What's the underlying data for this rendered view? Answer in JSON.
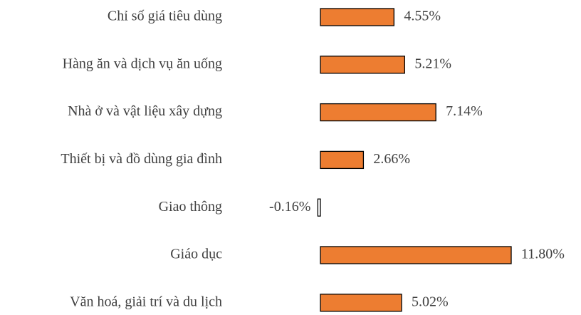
{
  "chart_data": {
    "type": "bar",
    "orientation": "horizontal",
    "categories": [
      "Chỉ số giá tiêu dùng",
      "Hàng ăn và dịch vụ ăn uống",
      "Nhà ở và vật liệu xây dựng",
      "Thiết bị và đồ dùng gia đình",
      "Giao thông",
      "Giáo dục",
      "Văn hoá, giải trí và du lịch"
    ],
    "values": [
      4.55,
      5.21,
      7.14,
      2.66,
      -0.16,
      11.8,
      5.02
    ],
    "value_labels": [
      "4.55%",
      "5.21%",
      "7.14%",
      "2.66%",
      "-0.16%",
      "11.80%",
      "5.02%"
    ],
    "color": "#ed7d31",
    "negative_color": "#ffffff",
    "edge_color": "#000000"
  }
}
